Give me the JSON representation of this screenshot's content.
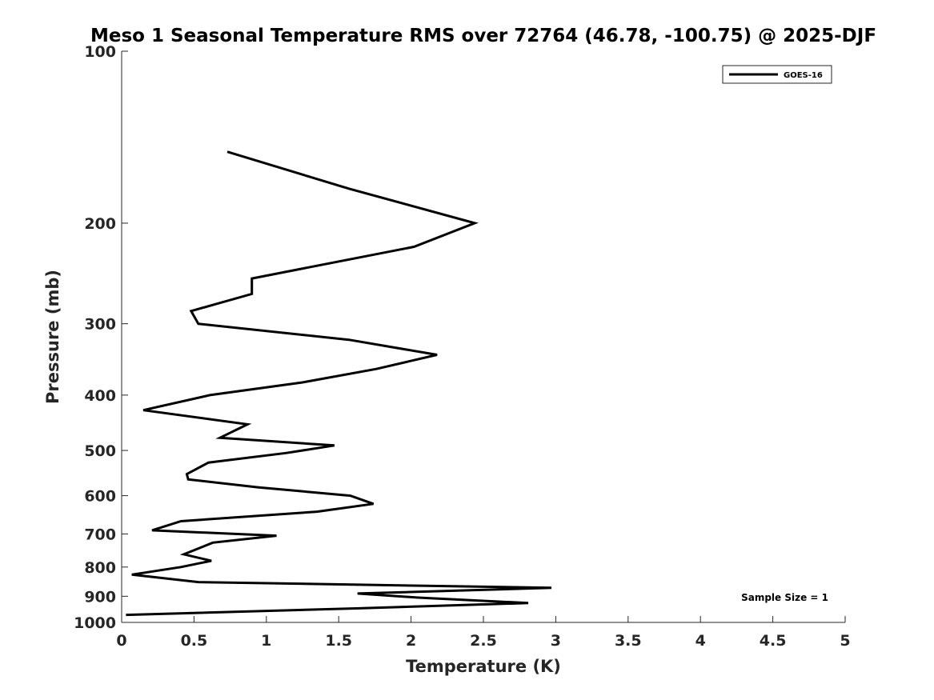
{
  "chart_data": {
    "type": "line",
    "title": "Meso 1 Seasonal Temperature RMS over 72764 (46.78, -100.75) @ 2025-DJF",
    "xlabel": "Temperature (K)",
    "ylabel": "Pressure (mb)",
    "xlim": [
      0,
      5
    ],
    "ylim": [
      100,
      1000
    ],
    "yscale": "log",
    "yreversed": true,
    "grid": false,
    "legend_position": "top-right",
    "x_ticks": [
      0,
      0.5,
      1,
      1.5,
      2,
      2.5,
      3,
      3.5,
      4,
      4.5,
      5
    ],
    "x_tick_labels": [
      "0",
      "0.5",
      "1",
      "1.5",
      "2",
      "2.5",
      "3",
      "3.5",
      "4",
      "4.5",
      "5"
    ],
    "y_ticks": [
      100,
      200,
      300,
      400,
      500,
      600,
      700,
      800,
      900,
      1000
    ],
    "y_tick_labels": [
      "100",
      "200",
      "300",
      "400",
      "500",
      "600",
      "700",
      "800",
      "900",
      "1000"
    ],
    "annotation": "Sample Size = 1",
    "series": [
      {
        "name": "GOES-16",
        "color": "#000000",
        "points": [
          {
            "x": 0.73,
            "y": 150
          },
          {
            "x": 1.57,
            "y": 174
          },
          {
            "x": 2.44,
            "y": 200
          },
          {
            "x": 2.02,
            "y": 220
          },
          {
            "x": 0.9,
            "y": 250
          },
          {
            "x": 0.9,
            "y": 266
          },
          {
            "x": 0.48,
            "y": 285
          },
          {
            "x": 0.53,
            "y": 300
          },
          {
            "x": 1.57,
            "y": 320
          },
          {
            "x": 2.18,
            "y": 340
          },
          {
            "x": 1.76,
            "y": 360
          },
          {
            "x": 1.25,
            "y": 380
          },
          {
            "x": 0.61,
            "y": 400
          },
          {
            "x": 0.15,
            "y": 425
          },
          {
            "x": 0.87,
            "y": 450
          },
          {
            "x": 0.68,
            "y": 475
          },
          {
            "x": 1.47,
            "y": 490
          },
          {
            "x": 1.14,
            "y": 505
          },
          {
            "x": 0.6,
            "y": 525
          },
          {
            "x": 0.45,
            "y": 550
          },
          {
            "x": 0.46,
            "y": 562
          },
          {
            "x": 0.94,
            "y": 580
          },
          {
            "x": 1.58,
            "y": 600
          },
          {
            "x": 1.74,
            "y": 620
          },
          {
            "x": 1.35,
            "y": 640
          },
          {
            "x": 0.41,
            "y": 665
          },
          {
            "x": 0.21,
            "y": 690
          },
          {
            "x": 1.07,
            "y": 705
          },
          {
            "x": 0.63,
            "y": 725
          },
          {
            "x": 0.43,
            "y": 760
          },
          {
            "x": 0.62,
            "y": 780
          },
          {
            "x": 0.41,
            "y": 800
          },
          {
            "x": 0.07,
            "y": 825
          },
          {
            "x": 0.53,
            "y": 850
          },
          {
            "x": 2.97,
            "y": 870
          },
          {
            "x": 1.63,
            "y": 890
          },
          {
            "x": 2.05,
            "y": 905
          },
          {
            "x": 2.81,
            "y": 925
          },
          {
            "x": 1.62,
            "y": 945
          },
          {
            "x": 0.03,
            "y": 970
          }
        ]
      }
    ]
  }
}
